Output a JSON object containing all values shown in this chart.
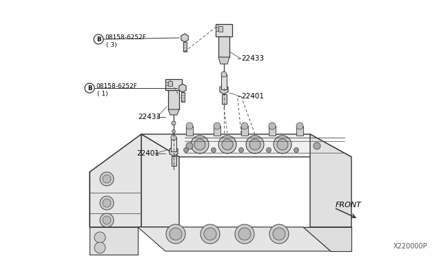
{
  "background_color": "#ffffff",
  "line_color": "#333333",
  "text_color": "#000000",
  "part_number": "X220000P",
  "front_label": "FRONT",
  "figsize": [
    6.4,
    3.72
  ],
  "dpi": 100,
  "labels": {
    "bolt_top_circle": "B",
    "bolt_top_text": "08158-6252F",
    "bolt_top_qty": "( 3)",
    "bolt_mid_circle": "B",
    "bolt_mid_text": "08158-6252F",
    "bolt_mid_qty": "( 1)",
    "coil_right": "22433",
    "coil_left": "22433",
    "plug_right": "22401",
    "plug_left": "22401"
  }
}
